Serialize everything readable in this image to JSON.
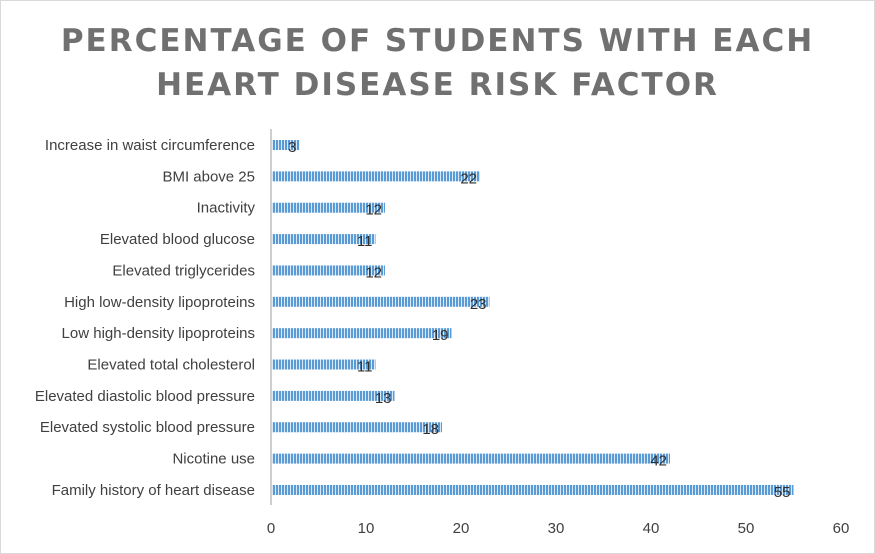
{
  "chart_data": {
    "type": "bar",
    "orientation": "horizontal",
    "title": "PERCENTAGE OF STUDENTS WITH EACH HEART DISEASE RISK FACTOR",
    "title_lines": [
      "PERCENTAGE OF STUDENTS WITH EACH",
      "HEART DISEASE RISK FACTOR"
    ],
    "categories": [
      "Increase in waist circumference",
      "BMI above 25",
      "Inactivity",
      "Elevated blood glucose",
      "Elevated triglycerides",
      "High low-density lipoproteins",
      "Low high-density lipoproteins",
      "Elevated total cholesterol",
      "Elevated diastolic blood pressure",
      "Elevated systolic blood pressure",
      "Nicotine use",
      "Family history of heart disease"
    ],
    "values": [
      3,
      22,
      12,
      11,
      12,
      23,
      19,
      11,
      13,
      18,
      42,
      55
    ],
    "xlim": [
      0,
      60
    ],
    "xticks": [
      "0",
      "10",
      "20",
      "30",
      "40",
      "50",
      "60"
    ],
    "xlabel": "",
    "ylabel": "",
    "grid": false,
    "legend": "none",
    "bar_color": "#5b9bd5",
    "bar_pattern": "vertical-stripes"
  }
}
